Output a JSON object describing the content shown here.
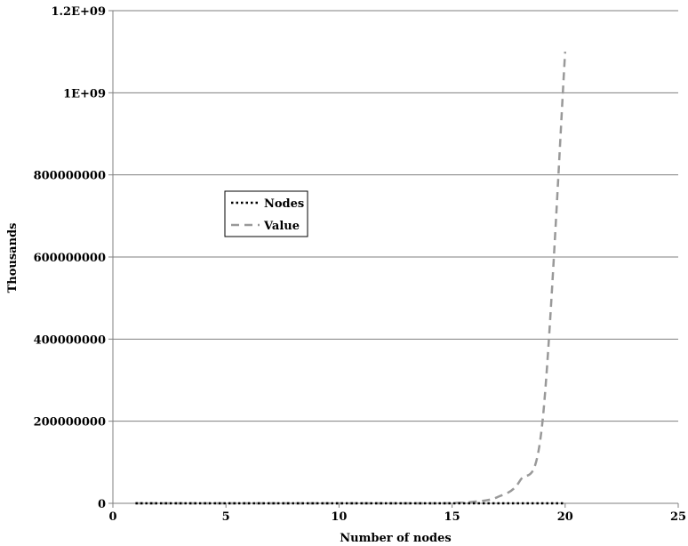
{
  "chart_data": {
    "type": "line",
    "title": "",
    "xlabel": "Number of nodes",
    "ylabel": "Thousands",
    "xlim": [
      0,
      25
    ],
    "ylim": [
      0,
      1200000000
    ],
    "x_ticks": [
      0,
      5,
      10,
      15,
      20,
      25
    ],
    "x_tick_labels": [
      "0",
      "5",
      "10",
      "15",
      "20",
      "25"
    ],
    "y_ticks": [
      0,
      200000000,
      400000000,
      600000000,
      800000000,
      1000000000,
      1200000000
    ],
    "y_tick_labels": [
      "0",
      "200000000",
      "400000000",
      "600000000",
      "800000000",
      "1E+09",
      "1.2E+09"
    ],
    "grid": "horizontal",
    "legend_placement": "upper-left-center",
    "series": [
      {
        "name": "Nodes",
        "style": "dotted",
        "color": "#000000",
        "x": [
          1,
          2,
          3,
          4,
          5,
          6,
          7,
          8,
          9,
          10,
          11,
          12,
          13,
          14,
          15,
          16,
          17,
          18,
          19,
          20
        ],
        "y": [
          0,
          0,
          0,
          0,
          0,
          0,
          0,
          0,
          0,
          0,
          0,
          0,
          0,
          0,
          0,
          0,
          0,
          0,
          0,
          0
        ]
      },
      {
        "name": "Value",
        "style": "dashed",
        "color": "#999999",
        "x": [
          1,
          2,
          3,
          4,
          5,
          6,
          7,
          8,
          9,
          10,
          11,
          12,
          13,
          14,
          15,
          16,
          17,
          18,
          19,
          20
        ],
        "y": [
          0,
          0,
          0,
          0,
          0,
          0,
          0,
          0,
          0,
          0,
          0,
          0,
          0,
          0,
          500000,
          4000000,
          15000000,
          55000000,
          200000000,
          1100000000
        ]
      }
    ]
  }
}
